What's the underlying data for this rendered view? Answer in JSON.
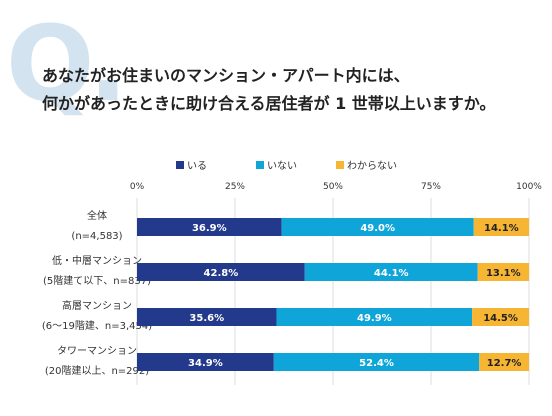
{
  "question": {
    "mark": "Q.",
    "line1": "あなたがお住まいのマンション・アパート内には、",
    "line2": "何かがあったときに助け合える居住者が 1 世帯以上いますか。"
  },
  "colors": {
    "iru": "#233a8c",
    "inai": "#10a5d8",
    "wakaranai": "#f6b533"
  },
  "chart_data": {
    "type": "bar",
    "orientation": "horizontal",
    "stacked": "percent",
    "xlim": [
      0,
      100
    ],
    "ticks": [
      "0%",
      "25%",
      "50%",
      "75%",
      "100%"
    ],
    "legend_position": "top",
    "series": [
      {
        "name": "いる",
        "values": [
          36.9,
          42.8,
          35.6,
          34.9
        ]
      },
      {
        "name": "いない",
        "values": [
          49.0,
          44.1,
          49.9,
          52.4
        ]
      },
      {
        "name": "わからない",
        "values": [
          14.1,
          13.1,
          14.5,
          12.7
        ]
      }
    ],
    "categories": [
      {
        "line1": "全体",
        "line2": "(n=4,583)"
      },
      {
        "line1": "低・中層マンション",
        "line2": "(5階建て以下、n=837)"
      },
      {
        "line1": "高層マンション",
        "line2": "(6〜19階建、n=3,454)"
      },
      {
        "line1": "タワーマンション",
        "line2": "(20階建以上、n=292)"
      }
    ],
    "labels": [
      [
        "36.9%",
        "49.0%",
        "14.1%"
      ],
      [
        "42.8%",
        "44.1%",
        "13.1%"
      ],
      [
        "35.6%",
        "49.9%",
        "14.5%"
      ],
      [
        "34.9%",
        "52.4%",
        "12.7%"
      ]
    ]
  }
}
